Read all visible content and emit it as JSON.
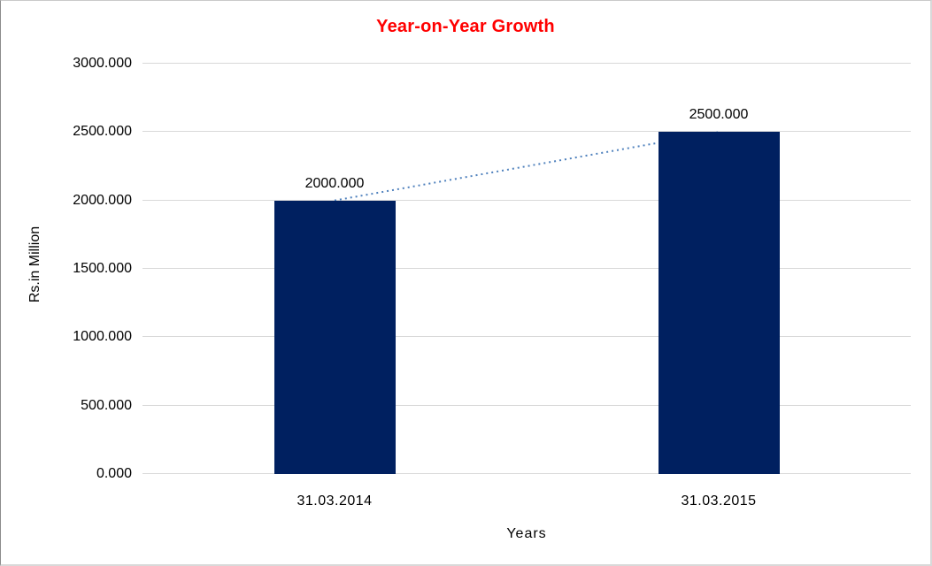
{
  "chart_data": {
    "type": "bar",
    "title": "Year-on-Year Growth",
    "xlabel": "Years",
    "ylabel": "Rs.in Million",
    "categories": [
      "31.03.2014",
      "31.03.2015"
    ],
    "values": [
      2000.0,
      2500.0
    ],
    "data_labels": [
      "2000.000",
      "2500.000"
    ],
    "y_ticks": [
      {
        "value": 3000,
        "label": "3000.000"
      },
      {
        "value": 2500,
        "label": "2500.000"
      },
      {
        "value": 2000,
        "label": "2000.000"
      },
      {
        "value": 1500,
        "label": "1500.000"
      },
      {
        "value": 1000,
        "label": "1000.000"
      },
      {
        "value": 500,
        "label": "500.000"
      },
      {
        "value": 0,
        "label": "0.000"
      }
    ],
    "ylim": [
      0,
      3000
    ],
    "grid": "horizontal",
    "legend": "none",
    "trendline": {
      "style": "dotted",
      "connects": [
        "31.03.2014",
        "31.03.2015"
      ]
    },
    "colors": {
      "bar": "#002060",
      "title": "#FF0000",
      "gridline": "#D9D9D9",
      "trendline": "#4F81BD",
      "axis_text": "#000000"
    }
  }
}
